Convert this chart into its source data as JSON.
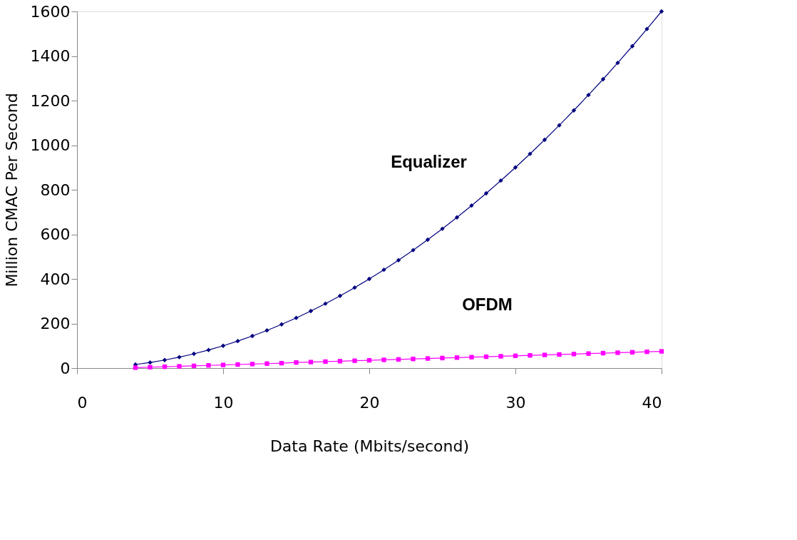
{
  "chart_data": {
    "type": "line",
    "xlabel": "Data Rate (Mbits/second)",
    "ylabel": "Million CMAC Per Second",
    "xlim": [
      0,
      40
    ],
    "xticks": [
      0,
      10,
      20,
      30,
      40
    ],
    "ylim": [
      0,
      1600
    ],
    "yticks": [
      0,
      200,
      400,
      600,
      800,
      1000,
      1200,
      1400,
      1600
    ],
    "grid": false,
    "legend": false,
    "x": [
      4,
      5,
      6,
      7,
      8,
      9,
      10,
      11,
      12,
      13,
      14,
      15,
      16,
      17,
      18,
      19,
      20,
      21,
      22,
      23,
      24,
      25,
      26,
      27,
      28,
      29,
      30,
      31,
      32,
      33,
      34,
      35,
      36,
      37,
      38,
      39,
      40
    ],
    "series": [
      {
        "name": "Equalizer",
        "color": "#000080",
        "marker": "diamond",
        "values": [
          16,
          25,
          36,
          49,
          64,
          81,
          100,
          121,
          144,
          169,
          196,
          225,
          256,
          289,
          324,
          361,
          400,
          441,
          484,
          529,
          576,
          625,
          676,
          729,
          784,
          841,
          900,
          961,
          1024,
          1089,
          1156,
          1225,
          1296,
          1369,
          1444,
          1521,
          1600
        ]
      },
      {
        "name": "OFDM",
        "color": "#ff00ff",
        "marker": "square",
        "values": [
          2,
          4,
          6,
          8,
          10,
          12,
          14,
          16,
          18,
          20,
          22,
          25,
          27,
          29,
          31,
          33,
          35,
          37,
          39,
          41,
          43,
          45,
          47,
          49,
          51,
          53,
          55,
          57,
          59,
          61,
          63,
          65,
          67,
          69,
          71,
          73,
          75
        ]
      }
    ]
  }
}
